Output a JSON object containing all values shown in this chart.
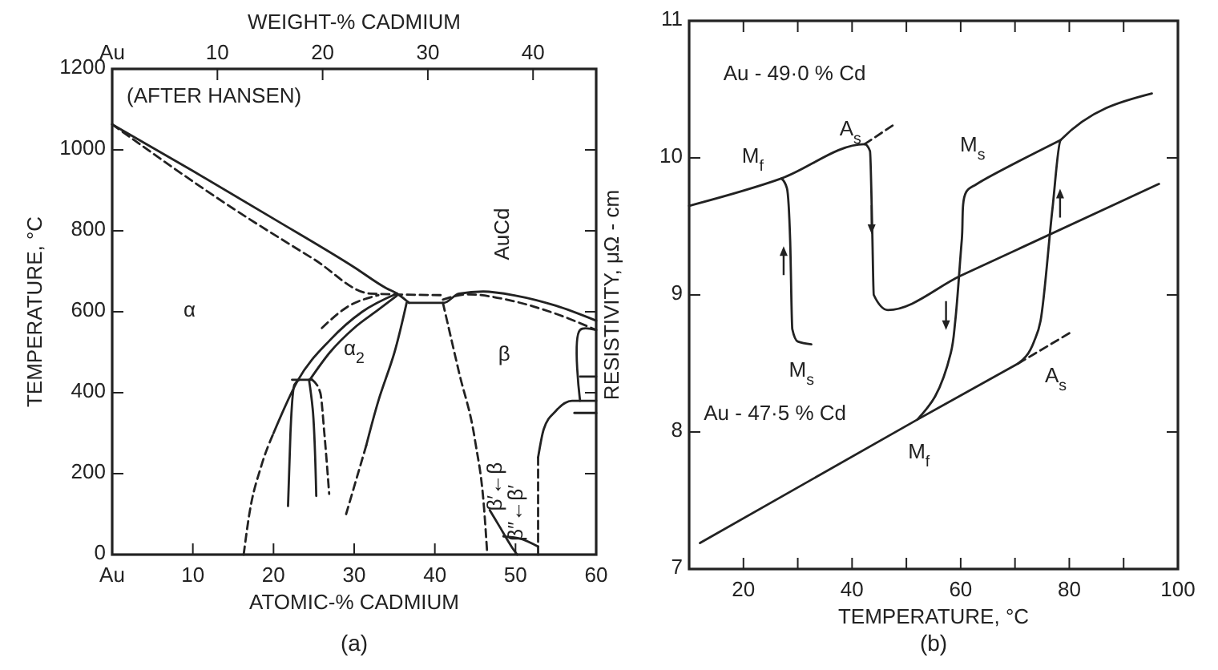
{
  "chart_data": [
    {
      "type": "line",
      "title": "(a)",
      "xlabel": "ATOMIC-% CADMIUM",
      "x2label": "WEIGHT-% CADMIUM",
      "ylabel": "TEMPERATURE, °C",
      "xlim": [
        0,
        60
      ],
      "xticks": [
        {
          "value": 0,
          "label": "Au"
        },
        10,
        20,
        30,
        40,
        50,
        60
      ],
      "x2lim": [
        0,
        46
      ],
      "x2ticks": [
        {
          "value": 0,
          "label": "Au"
        },
        10,
        20,
        30,
        40
      ],
      "ylim": [
        0,
        1200
      ],
      "yticks": [
        0,
        200,
        400,
        600,
        800,
        1000,
        1200
      ],
      "annotations": [
        "(AFTER HANSEN)",
        "α",
        "α$_{2}$",
        "β",
        "AuCd",
        "β′←β",
        "β″←β′"
      ],
      "series": [
        {
          "color": "#222222",
          "line_style": "solid",
          "x": [
            0,
            10,
            20,
            30,
            34,
            35.3,
            36.8
          ],
          "values": [
            1063,
            948,
            830,
            710,
            658,
            645,
            622
          ]
        },
        {
          "color": "#222222",
          "line_style": "dashed",
          "x": [
            0,
            15,
            25,
            32,
            41
          ],
          "values": [
            1063,
            855,
            730,
            645,
            641
          ]
        },
        {
          "color": "#222222",
          "line_style": "solid",
          "x": [
            36.8,
            41.1,
            43,
            46,
            50,
            55,
            60
          ],
          "values": [
            622,
            622,
            645,
            650,
            640,
            615,
            578
          ]
        },
        {
          "color": "#222222",
          "line_style": "dashed",
          "x": [
            41,
            44,
            50,
            55,
            60
          ],
          "values": [
            630,
            643,
            625,
            595,
            555
          ]
        },
        {
          "color": "#222222",
          "line_style": "dashed",
          "x": [
            16.3,
            17,
            18.5,
            20
          ],
          "values": [
            0,
            100,
            220,
            300
          ]
        },
        {
          "color": "#222222",
          "line_style": "solid",
          "x": [
            20,
            23,
            27,
            31,
            35.3
          ],
          "values": [
            300,
            430,
            530,
            600,
            645
          ]
        },
        {
          "color": "#222222",
          "line_style": "dashed",
          "x": [
            26,
            29,
            33
          ],
          "values": [
            560,
            610,
            641
          ]
        },
        {
          "color": "#222222",
          "line_style": "solid",
          "x": [
            24.5,
            27,
            30,
            33,
            35.3
          ],
          "values": [
            432,
            500,
            560,
            605,
            640
          ]
        },
        {
          "color": "#222222",
          "line_style": "solid",
          "x": [
            22.3,
            24.8
          ],
          "values": [
            432,
            432
          ]
        },
        {
          "color": "#222222",
          "line_style": "solid",
          "x": [
            21.8,
            22.1,
            22.6,
            23.2
          ],
          "values": [
            120,
            300,
            420,
            432
          ]
        },
        {
          "color": "#222222",
          "line_style": "solid",
          "x": [
            25.3,
            24.9,
            24.4
          ],
          "values": [
            145,
            350,
            432
          ]
        },
        {
          "color": "#222222",
          "line_style": "dashed",
          "x": [
            24.8,
            25.8,
            26.3,
            26.9
          ],
          "values": [
            432,
            400,
            300,
            150
          ]
        },
        {
          "color": "#222222",
          "line_style": "solid",
          "x": [
            36.5,
            35,
            33,
            31.5
          ],
          "values": [
            622,
            500,
            380,
            270
          ]
        },
        {
          "color": "#222222",
          "line_style": "dashed",
          "x": [
            31.5,
            29
          ],
          "values": [
            270,
            100
          ]
        },
        {
          "color": "#222222",
          "line_style": "dashed",
          "x": [
            41,
            43,
            45,
            46.1,
            46.5
          ],
          "values": [
            622,
            450,
            280,
            115,
            0
          ]
        },
        {
          "color": "#222222",
          "line_style": "dashed",
          "x": [
            52.8,
            52.8
          ],
          "values": [
            0,
            240
          ]
        },
        {
          "color": "#222222",
          "line_style": "solid",
          "x": [
            52.8,
            53.5,
            55,
            57,
            60
          ],
          "values": [
            240,
            310,
            355,
            380,
            380
          ]
        },
        {
          "color": "#222222",
          "line_style": "solid",
          "x": [
            57.3,
            60
          ],
          "values": [
            350,
            350
          ]
        },
        {
          "color": "#222222",
          "line_style": "solid",
          "x": [
            58,
            58,
            60
          ],
          "values": [
            380,
            555,
            555
          ]
        },
        {
          "color": "#222222",
          "line_style": "solid",
          "x": [
            58,
            60
          ],
          "values": [
            440,
            440
          ]
        },
        {
          "color": "#222222",
          "line_style": "solid",
          "x": [
            46.8,
            48,
            49.5,
            50.2
          ],
          "values": [
            110,
            70,
            20,
            0
          ]
        },
        {
          "color": "#222222",
          "line_style": "solid",
          "x": [
            48.5,
            50.5,
            52.8
          ],
          "values": [
            45,
            40,
            20
          ]
        }
      ]
    },
    {
      "type": "line",
      "title": "(b)",
      "xlabel": "TEMPERATURE, °C",
      "ylabel": "RESISTIVITY, μΩ - cm",
      "xlim": [
        10,
        100
      ],
      "xticks": [
        20,
        {
          "value": 30,
          "label": null
        },
        40,
        {
          "value": 50,
          "label": null
        },
        60,
        {
          "value": 70,
          "label": null
        },
        80,
        {
          "value": 90,
          "label": null
        },
        100
      ],
      "ylim": [
        7,
        11
      ],
      "yticks": [
        7,
        8,
        9,
        10,
        11
      ],
      "annotations": [
        "Au - 49·0 % Cd",
        "Au - 47·5 % Cd",
        "M$_{f}$",
        "A$_{s}$",
        "M$_{s}$",
        "M$_{s}$",
        "A$_{s}$",
        "M$_{f}$"
      ],
      "series": [
        {
          "color": "#222222",
          "line_style": "solid",
          "x": [
            10,
            27,
            42.3,
            43.3,
            43.7,
            44,
            46.6,
            60,
            96.5
          ],
          "values": [
            9.65,
            9.85,
            10.1,
            10.05,
            9.5,
            9.0,
            8.89,
            9.14,
            9.81
          ]
        },
        {
          "color": "#222222",
          "line_style": "solid",
          "x": [
            27,
            28,
            28.6,
            29,
            30,
            32.5
          ],
          "values": [
            9.85,
            9.78,
            9.4,
            8.75,
            8.66,
            8.64
          ]
        },
        {
          "color": "#222222",
          "line_style": "dashed",
          "x": [
            42.3,
            48
          ],
          "values": [
            10.1,
            10.25
          ]
        },
        {
          "color": "#222222",
          "line_style": "solid",
          "x": [
            12,
            52,
            70.6
          ],
          "values": [
            7.19,
            8.09,
            8.5
          ]
        },
        {
          "color": "#222222",
          "line_style": "dashed",
          "x": [
            70.6,
            80.4
          ],
          "values": [
            8.5,
            8.73
          ]
        },
        {
          "color": "#222222",
          "line_style": "solid",
          "x": [
            70.6,
            73.5,
            74.7,
            76.9,
            78.4,
            95.2
          ],
          "values": [
            8.5,
            8.66,
            8.81,
            9.63,
            10.13,
            10.47
          ]
        },
        {
          "color": "#222222",
          "line_style": "solid",
          "x": [
            78.4,
            63,
            61,
            60.2,
            59,
            58.2,
            55.3,
            52
          ],
          "values": [
            10.13,
            9.81,
            9.75,
            9.4,
            8.81,
            8.58,
            8.26,
            8.09
          ]
        }
      ]
    }
  ]
}
